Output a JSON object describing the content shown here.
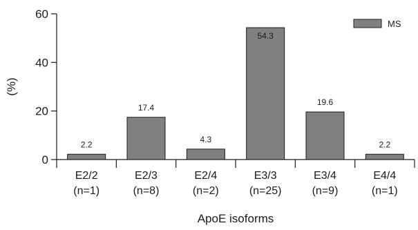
{
  "chart_data": {
    "type": "bar",
    "categories": [
      "E2/2\n(n=1)",
      "E2/3\n(n=8)",
      "E2/4\n(n=2)",
      "E3/3\n(n=25)",
      "E3/4\n(n=9)",
      "E4/4\n(n=1)"
    ],
    "series": [
      {
        "name": "MS",
        "values": [
          2.2,
          17.4,
          4.3,
          54.3,
          19.6,
          2.2
        ]
      }
    ],
    "data_labels": [
      "2.2",
      "17.4",
      "4.3",
      "54.3",
      "19.6",
      "2.2"
    ],
    "xlabel": "ApoE isoforms",
    "ylabel": "(%)",
    "ylim": [
      0,
      60
    ],
    "yticks": [
      0,
      20,
      40,
      60
    ],
    "grid": false,
    "legend_position": "top-right",
    "bar_color": "#808080",
    "bar_edge_color": "#1a1a1a"
  }
}
